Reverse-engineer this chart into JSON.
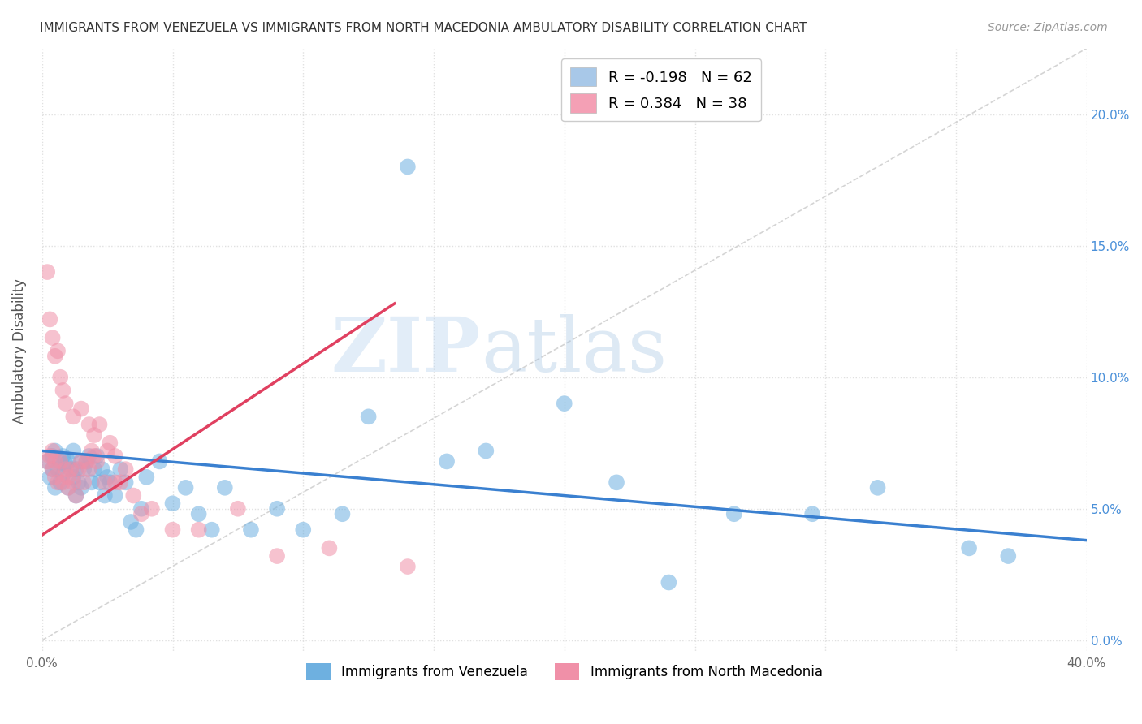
{
  "title": "IMMIGRANTS FROM VENEZUELA VS IMMIGRANTS FROM NORTH MACEDONIA AMBULATORY DISABILITY CORRELATION CHART",
  "source": "Source: ZipAtlas.com",
  "ylabel": "Ambulatory Disability",
  "yticks": [
    0.0,
    0.05,
    0.1,
    0.15,
    0.2
  ],
  "ytick_labels_right": [
    "0.0%",
    "5.0%",
    "10.0%",
    "15.0%",
    "20.0%"
  ],
  "xtick_labels": [
    "0.0%",
    "",
    "",
    "",
    "",
    "",
    "",
    "",
    "40.0%"
  ],
  "xlim": [
    0.0,
    0.4
  ],
  "ylim": [
    -0.005,
    0.225
  ],
  "watermark_zip": "ZIP",
  "watermark_atlas": "atlas",
  "legend_entry1_color": "#a8c8e8",
  "legend_entry1_R": "-0.198",
  "legend_entry1_N": "62",
  "legend_entry2_color": "#f4a0b5",
  "legend_entry2_R": "0.384",
  "legend_entry2_N": "38",
  "venezuela_color": "#6eb0e0",
  "venezuela_edge": "#5090c0",
  "north_macedonia_color": "#f090a8",
  "north_macedonia_edge": "#d06080",
  "trend_venezuela_color": "#3a80d0",
  "trend_north_macedonia_color": "#e04060",
  "diagonal_color": "#d0d0d0",
  "background_color": "#ffffff",
  "grid_color": "#e0e0e0",
  "venezuela_x": [
    0.002,
    0.003,
    0.004,
    0.004,
    0.005,
    0.005,
    0.006,
    0.007,
    0.007,
    0.008,
    0.008,
    0.009,
    0.01,
    0.01,
    0.011,
    0.012,
    0.012,
    0.013,
    0.013,
    0.014,
    0.015,
    0.015,
    0.016,
    0.017,
    0.018,
    0.019,
    0.02,
    0.021,
    0.022,
    0.023,
    0.024,
    0.025,
    0.026,
    0.028,
    0.03,
    0.032,
    0.034,
    0.036,
    0.038,
    0.04,
    0.045,
    0.05,
    0.055,
    0.06,
    0.065,
    0.07,
    0.08,
    0.09,
    0.1,
    0.115,
    0.125,
    0.14,
    0.155,
    0.17,
    0.2,
    0.22,
    0.24,
    0.265,
    0.295,
    0.32,
    0.355,
    0.37
  ],
  "venezuela_y": [
    0.068,
    0.062,
    0.07,
    0.065,
    0.072,
    0.058,
    0.065,
    0.068,
    0.06,
    0.07,
    0.063,
    0.067,
    0.068,
    0.058,
    0.065,
    0.072,
    0.062,
    0.065,
    0.055,
    0.06,
    0.068,
    0.058,
    0.065,
    0.068,
    0.07,
    0.06,
    0.065,
    0.07,
    0.06,
    0.065,
    0.055,
    0.062,
    0.06,
    0.055,
    0.065,
    0.06,
    0.045,
    0.042,
    0.05,
    0.062,
    0.068,
    0.052,
    0.058,
    0.048,
    0.042,
    0.058,
    0.042,
    0.05,
    0.042,
    0.048,
    0.085,
    0.18,
    0.068,
    0.072,
    0.09,
    0.06,
    0.022,
    0.048,
    0.048,
    0.058,
    0.035,
    0.032
  ],
  "north_macedonia_x": [
    0.002,
    0.003,
    0.004,
    0.004,
    0.005,
    0.005,
    0.006,
    0.007,
    0.008,
    0.009,
    0.01,
    0.01,
    0.011,
    0.012,
    0.013,
    0.014,
    0.015,
    0.016,
    0.017,
    0.018,
    0.019,
    0.02,
    0.021,
    0.022,
    0.024,
    0.026,
    0.028,
    0.03,
    0.032,
    0.035,
    0.038,
    0.042,
    0.05,
    0.06,
    0.075,
    0.09,
    0.11,
    0.14
  ],
  "north_macedonia_y": [
    0.068,
    0.07,
    0.072,
    0.065,
    0.062,
    0.068,
    0.06,
    0.068,
    0.06,
    0.065,
    0.062,
    0.058,
    0.065,
    0.06,
    0.055,
    0.065,
    0.068,
    0.06,
    0.068,
    0.065,
    0.072,
    0.07,
    0.068,
    0.082,
    0.06,
    0.075,
    0.06,
    0.06,
    0.065,
    0.055,
    0.048,
    0.05,
    0.042,
    0.042,
    0.05,
    0.032,
    0.035,
    0.028
  ],
  "north_macedonia_outliers_x": [
    0.002,
    0.003,
    0.004,
    0.005,
    0.006,
    0.007,
    0.008,
    0.009,
    0.012,
    0.015,
    0.018,
    0.02,
    0.025,
    0.028
  ],
  "north_macedonia_outliers_y": [
    0.14,
    0.122,
    0.115,
    0.108,
    0.11,
    0.1,
    0.095,
    0.09,
    0.085,
    0.088,
    0.082,
    0.078,
    0.072,
    0.07
  ],
  "trend_ven_x0": 0.0,
  "trend_ven_y0": 0.072,
  "trend_ven_x1": 0.4,
  "trend_ven_y1": 0.038,
  "trend_mac_x0": 0.0,
  "trend_mac_y0": 0.04,
  "trend_mac_x1": 0.135,
  "trend_mac_y1": 0.128
}
